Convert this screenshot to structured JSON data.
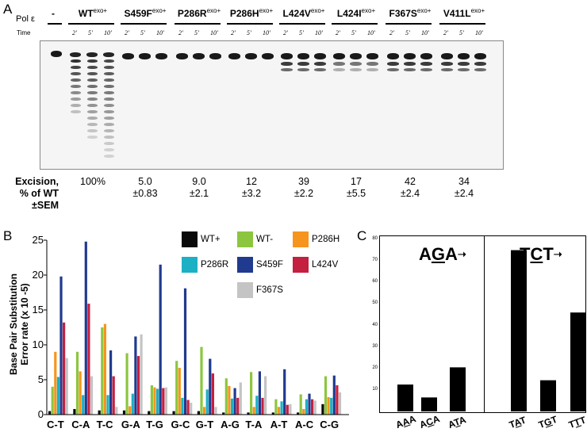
{
  "panel_a": {
    "letter": "A",
    "enzyme_label": "Pol ε",
    "control_label": "-",
    "time_label": "Time",
    "time_ticks": [
      "2'",
      "5'",
      "10'"
    ],
    "lanes": [
      {
        "name": "WT",
        "sup": "exo+"
      },
      {
        "name": "S459F",
        "sup": "exo+"
      },
      {
        "name": "P286R",
        "sup": "exo+"
      },
      {
        "name": "P286H",
        "sup": "exo+"
      },
      {
        "name": "L424V",
        "sup": "exo+"
      },
      {
        "name": "L424I",
        "sup": "exo+"
      },
      {
        "name": "F367S",
        "sup": "exo+"
      },
      {
        "name": "V411L",
        "sup": "exo+"
      }
    ],
    "excision_label": [
      "Excision,",
      "% of WT",
      "±SEM"
    ],
    "excision_values": [
      {
        "mean": "100%",
        "sem": ""
      },
      {
        "mean": "5.0",
        "sem": "±0.83"
      },
      {
        "mean": "9.0",
        "sem": "±2.1"
      },
      {
        "mean": "12",
        "sem": "±3.2"
      },
      {
        "mean": "39",
        "sem": "±2.2"
      },
      {
        "mean": "17",
        "sem": "±5.5"
      },
      {
        "mean": "42",
        "sem": "±2.4"
      },
      {
        "mean": "34",
        "sem": "±2.4"
      }
    ]
  },
  "panel_b": {
    "letter": "B",
    "colors": {
      "WT+": "#0a0a0a",
      "WT-": "#8cc63f",
      "P286H": "#f7941d",
      "P286R": "#1cb0c4",
      "S459F": "#203a8f",
      "L424V": "#c4203f",
      "F367S": "#c4c4c4"
    },
    "legend_order": [
      "WT+",
      "WT-",
      "P286H",
      "P286R",
      "S459F",
      "L424V",
      "F367S"
    ]
  },
  "panel_c": {
    "letter": "C",
    "context_left": "AGA",
    "context_right": "TCT",
    "arrow": "➝"
  },
  "chart_data": [
    {
      "type": "bar",
      "title": "",
      "xlabel": "",
      "ylabel": "Base Pair Substitution Error rate (x 10 -5)",
      "ylabel_lines": [
        "Base Pair Substitution",
        "Error rate (x 10 -5)"
      ],
      "ylim": [
        0,
        25
      ],
      "yticks": [
        0,
        5,
        10,
        15,
        20,
        25
      ],
      "categories": [
        "C-T",
        "C-A",
        "T-C",
        "G-A",
        "T-G",
        "G-C",
        "G-T",
        "A-G",
        "T-A",
        "A-T",
        "A-C",
        "C-G"
      ],
      "series": [
        {
          "name": "WT+",
          "values": [
            0.5,
            0.8,
            0.6,
            0.6,
            0.5,
            0.5,
            0.5,
            0.3,
            0.3,
            0.3,
            0.3,
            1.5
          ]
        },
        {
          "name": "WT-",
          "values": [
            4.0,
            9.0,
            12.5,
            8.8,
            4.2,
            7.7,
            9.7,
            5.2,
            6.1,
            2.2,
            2.9,
            5.5
          ]
        },
        {
          "name": "P286H",
          "values": [
            9.0,
            6.2,
            13.0,
            1.2,
            3.9,
            6.7,
            1.1,
            4.1,
            1.1,
            1.1,
            0.8,
            2.5
          ]
        },
        {
          "name": "P286R",
          "values": [
            5.4,
            2.8,
            2.8,
            3.0,
            3.7,
            2.4,
            3.6,
            2.3,
            2.7,
            1.9,
            2.2,
            2.4
          ]
        },
        {
          "name": "S459F",
          "values": [
            19.8,
            24.8,
            9.2,
            11.2,
            21.5,
            18.1,
            8.0,
            3.8,
            6.2,
            6.5,
            3.0,
            5.6
          ]
        },
        {
          "name": "L424V",
          "values": [
            13.2,
            15.9,
            5.5,
            8.4,
            3.8,
            2.1,
            5.9,
            2.4,
            2.4,
            1.4,
            2.2,
            4.2
          ]
        },
        {
          "name": "F367S",
          "values": [
            8.1,
            5.5,
            1.1,
            11.5,
            3.9,
            1.7,
            1.1,
            4.6,
            5.5,
            1.5,
            2.0,
            3.2
          ]
        }
      ]
    },
    {
      "type": "bar",
      "title": "",
      "xlabel": "",
      "ylabel": "",
      "ylim": [
        0,
        80
      ],
      "yticks": [
        0,
        10,
        20,
        30,
        40,
        50,
        60,
        70,
        80
      ],
      "categories": [
        "AAA",
        "ACA",
        "ATA",
        "TAT",
        "TGT",
        "TTT"
      ],
      "underline_index": 1,
      "values": [
        12.5,
        6.5,
        20.5,
        75.0,
        14.5,
        46.0
      ]
    }
  ]
}
